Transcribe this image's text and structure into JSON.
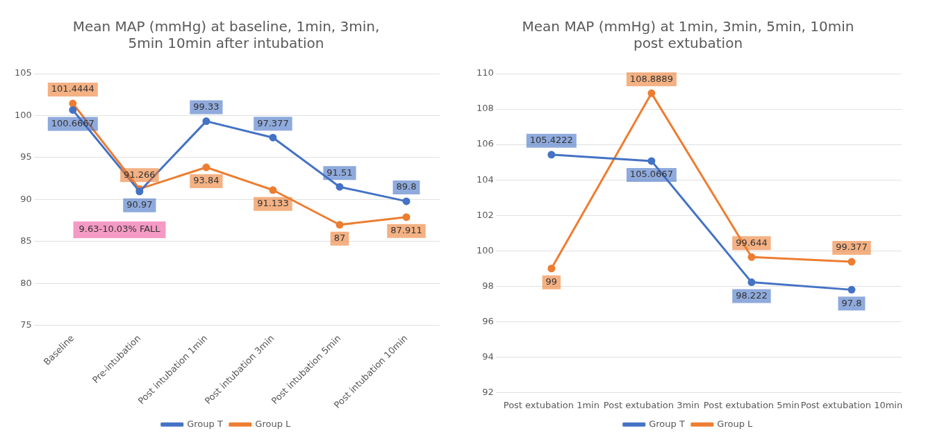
{
  "chart_data": [
    {
      "type": "line",
      "title": "Mean MAP (mmHg) at baseline, 1min, 3min,\n5min 10min after intubation",
      "categories": [
        "Baseline",
        "Pre-intubation",
        "Post intubation 1min",
        "Post intubation 3min",
        "Post intubation 5min",
        "Post intubation 10min"
      ],
      "series": [
        {
          "name": "Group T",
          "color": "#4472c4",
          "values": [
            100.6667,
            90.97,
            99.33,
            97.377,
            91.51,
            89.8
          ]
        },
        {
          "name": "Group L",
          "color": "#ed7d31",
          "values": [
            101.4444,
            91.266,
            93.84,
            91.133,
            87,
            87.911
          ]
        }
      ],
      "ylim": [
        75,
        105
      ],
      "yticks": [
        75,
        80,
        85,
        90,
        95,
        100,
        105
      ],
      "grid": "y",
      "legend": "bottom",
      "marker": "circle",
      "data_labels": true,
      "annotations": [
        "9.63-10.03% FALL"
      ]
    },
    {
      "type": "line",
      "title": "Mean MAP (mmHg) at 1min, 3min, 5min, 10min\npost extubation",
      "categories": [
        "Post extubation 1min",
        "Post extubation 3min",
        "Post extubation 5min",
        "Post extubation 10min"
      ],
      "series": [
        {
          "name": "Group T",
          "color": "#4472c4",
          "values": [
            105.4222,
            105.0667,
            98.222,
            97.8
          ]
        },
        {
          "name": "Group L",
          "color": "#ed7d31",
          "values": [
            99,
            108.8889,
            99.644,
            99.377
          ]
        }
      ],
      "ylim": [
        92,
        110
      ],
      "yticks": [
        92,
        94,
        96,
        98,
        100,
        102,
        104,
        106,
        108,
        110
      ],
      "grid": "y",
      "legend": "bottom",
      "marker": "circle",
      "data_labels": true
    }
  ]
}
